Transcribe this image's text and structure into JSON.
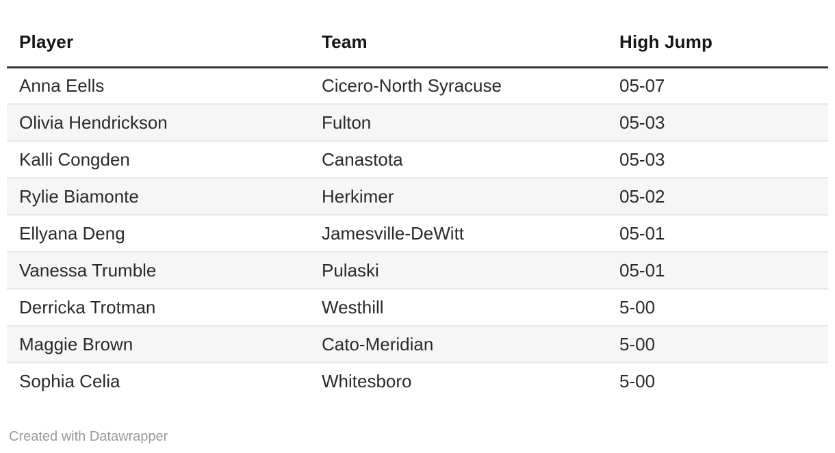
{
  "chart_data": {
    "type": "table",
    "title": "",
    "columns": [
      "Player",
      "Team",
      "High Jump"
    ],
    "rows": [
      [
        "Anna Eells",
        "Cicero-North Syracuse",
        "05-07"
      ],
      [
        "Olivia Hendrickson",
        "Fulton",
        "05-03"
      ],
      [
        "Kalli Congden",
        "Canastota",
        "05-03"
      ],
      [
        "Rylie Biamonte",
        "Herkimer",
        "05-02"
      ],
      [
        "Ellyana Deng",
        "Jamesville-DeWitt",
        "05-01"
      ],
      [
        "Vanessa Trumble",
        "Pulaski",
        "05-01"
      ],
      [
        "Derricka Trotman",
        "Westhill",
        "5-00"
      ],
      [
        "Maggie Brown",
        "Cato-Meridian",
        "5-00"
      ],
      [
        "Sophia Celia",
        "Whitesboro",
        "5-00"
      ]
    ],
    "layout": {
      "striped_rows": true,
      "stripe_on": "even",
      "header_rule": true
    }
  },
  "footer": {
    "credit": "Created with Datawrapper"
  },
  "colors": {
    "background": "#ffffff",
    "stripe": "#f6f6f6",
    "header_rule": "#333333",
    "row_border": "#e7e7e7",
    "header_text": "#161616",
    "body_text": "#2a2a2a",
    "footer_text": "#9a9a9a"
  }
}
